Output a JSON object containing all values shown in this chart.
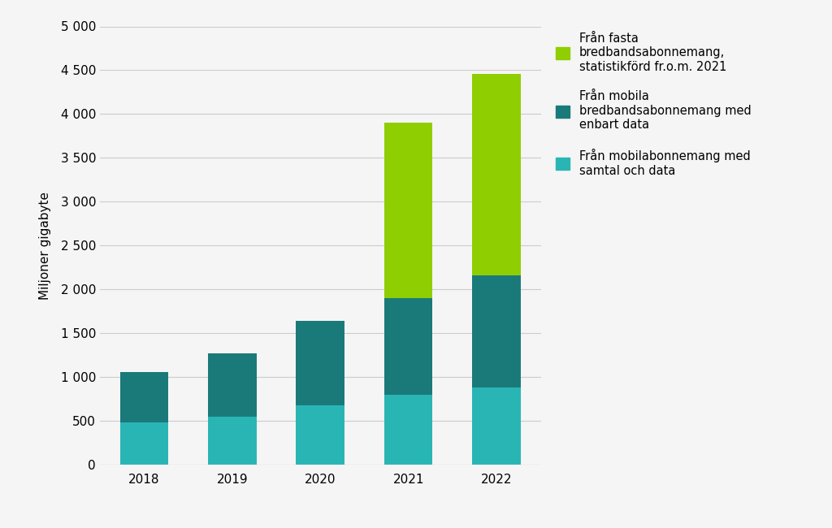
{
  "years": [
    "2018",
    "2019",
    "2020",
    "2021",
    "2022"
  ],
  "samtal_och_data": [
    480,
    550,
    680,
    800,
    880
  ],
  "enbart_data": [
    580,
    720,
    960,
    1100,
    1280
  ],
  "fasta_bredband": [
    0,
    0,
    0,
    2000,
    2300
  ],
  "color_samtal": "#2ab5b5",
  "color_enbart": "#1a7a7a",
  "color_fasta": "#8fce00",
  "ylabel": "Miljoner gigabyte",
  "ylim": [
    0,
    5000
  ],
  "yticks": [
    0,
    500,
    1000,
    1500,
    2000,
    2500,
    3000,
    3500,
    4000,
    4500,
    5000
  ],
  "ytick_labels": [
    "0",
    "500",
    "1 000",
    "1 500",
    "2 000",
    "2 500",
    "3 000",
    "3 500",
    "4 000",
    "4 500",
    "5 000"
  ],
  "legend_fasta": "Från fasta\nbredbandsabonnemang,\nstatistikförd fr.o.m. 2021",
  "legend_enbart": "Från mobila\nbredbandsabonnemang med\nenbart data",
  "legend_samtal": "Från mobilabonnemang med\nsamtal och data",
  "background_color": "#f5f5f5",
  "bar_width": 0.55,
  "grid_color": "#cccccc"
}
